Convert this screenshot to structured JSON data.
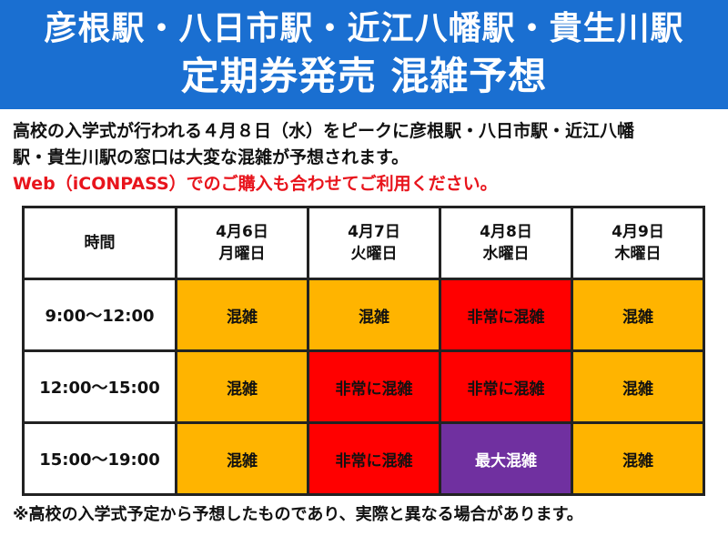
{
  "header": {
    "stations_line": "彦根駅・八日市駅・近江八幡駅・貴生川駅",
    "title_line": "定期券発売 混雑予想",
    "background_color": "#1a6fd1"
  },
  "notice": {
    "line1": "高校の入学式が行われる４月８日（水）をピークに彦根駅・八日市駅・近江八幡",
    "line2": "駅・貴生川駅の窓口は大変な混雑が予想されます。",
    "line3": "Web（iCONPASS）でのご購入も合わせてご利用ください。",
    "highlight_color": "#e8141c"
  },
  "table": {
    "corner_label": "時間",
    "days": [
      {
        "date": "4月6日",
        "weekday": "月曜日"
      },
      {
        "date": "4月7日",
        "weekday": "火曜日"
      },
      {
        "date": "4月8日",
        "weekday": "水曜日"
      },
      {
        "date": "4月9日",
        "weekday": "木曜日"
      }
    ],
    "rows": [
      {
        "time": "9:00～12:00",
        "cells": [
          "混雑",
          "混雑",
          "非常に混雑",
          "混雑"
        ]
      },
      {
        "time": "12:00～15:00",
        "cells": [
          "混雑",
          "非常に混雑",
          "非常に混雑",
          "混雑"
        ]
      },
      {
        "time": "15:00～19:00",
        "cells": [
          "混雑",
          "非常に混雑",
          "最大混雑",
          "混雑"
        ]
      }
    ],
    "level_colors": {
      "混雑": "#ffb400",
      "非常に混雑": "#ff0000",
      "最大混雑": "#7030a0"
    }
  },
  "footer": {
    "note": "※高校の入学式予定から予想したものであり、実際と異なる場合があります。"
  }
}
